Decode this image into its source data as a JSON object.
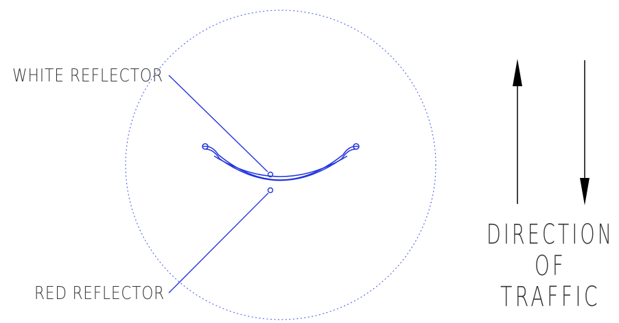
{
  "labels": {
    "white_reflector": "WHITE REFLECTOR",
    "red_reflector": "RED REFLECTOR"
  },
  "direction": {
    "line1": "DIRECTION",
    "line2": "OF",
    "line3": "TRAFFIC"
  },
  "colors": {
    "leader": "#2233dd",
    "marker": "#2233dd",
    "dotted_circle": "#5566ee",
    "text": "#333333",
    "arrow": "#000000"
  }
}
